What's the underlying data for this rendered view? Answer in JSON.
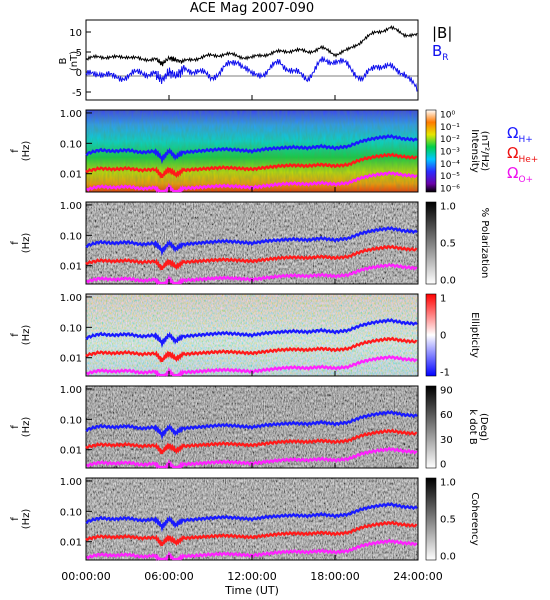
{
  "title": "ACE Mag 2007-090",
  "xlabel": "Time (UT)",
  "x_ticks": [
    "00:00:00",
    "06:00:00",
    "12:00:00",
    "18:00:00",
    "24:00:00"
  ],
  "colors": {
    "B_total": "#000000",
    "B_R": "#1010ee",
    "H_plus": "#1a1aff",
    "He_plus": "#ff1a1a",
    "O_plus": "#ff22ff"
  },
  "chart_data": [
    {
      "type": "line",
      "panel": "field",
      "ylabel": "B\n(nT)",
      "ylim": [
        -7,
        13
      ],
      "y_ticks": [
        "10",
        "5",
        "0",
        "-5"
      ],
      "legend": [
        "|B|",
        "B"
      ],
      "legend_subscripts": [
        "",
        "R"
      ],
      "x_hours": [
        0,
        1,
        2,
        3,
        4,
        5,
        5.5,
        6,
        6.5,
        7,
        8,
        9,
        10,
        11,
        12,
        13,
        14,
        15,
        16,
        17,
        18,
        19,
        20,
        21,
        22,
        23,
        24
      ],
      "series": [
        {
          "name": "|B|",
          "values": [
            3,
            4,
            3.5,
            4,
            3,
            3.5,
            2,
            3.5,
            3,
            2.5,
            3.5,
            4,
            4.5,
            4,
            3.5,
            4.5,
            5,
            5.5,
            5,
            6,
            4.5,
            5.5,
            8,
            10,
            11,
            9.5,
            9
          ]
        },
        {
          "name": "B",
          "values": [
            -1,
            0,
            -1.5,
            -1,
            0,
            -0.5,
            -2,
            0,
            -1,
            0.5,
            0.5,
            -1.5,
            1,
            3,
            -1,
            0,
            2.5,
            0,
            -1.5,
            2.5,
            3,
            1.5,
            -2,
            2,
            1,
            0,
            -5
          ]
        }
      ]
    },
    {
      "type": "heatmap",
      "panel": "intensity",
      "ylabel": "f\n(Hz)",
      "y_ticks": [
        "1.00",
        "0.10",
        "0.01"
      ],
      "colorbar_label": "Intensity\n(nT²/Hz)",
      "colorbar_ticks": [
        "10⁰",
        "10⁻¹",
        "10⁻²",
        "10⁻³",
        "10⁻⁴",
        "10⁻⁵",
        "10⁻⁶"
      ],
      "legend": [
        "Ω",
        "Ω",
        "Ω"
      ],
      "legend_subscripts": [
        "H+",
        "He+",
        "O+"
      ]
    },
    {
      "type": "heatmap",
      "panel": "polarization",
      "ylabel": "f\n(Hz)",
      "y_ticks": [
        "1.00",
        "0.10",
        "0.01"
      ],
      "colorbar_label": "% Polarization",
      "colorbar_ticks": [
        "1.0",
        "0.5",
        "0.0"
      ]
    },
    {
      "type": "heatmap",
      "panel": "ellipticity",
      "ylabel": "f\n(Hz)",
      "y_ticks": [
        "1.00",
        "0.10",
        "0.01"
      ],
      "colorbar_label": "Ellipticity",
      "colorbar_ticks": [
        "1",
        "0",
        "-1"
      ]
    },
    {
      "type": "heatmap",
      "panel": "kdotb",
      "ylabel": "f\n(Hz)",
      "y_ticks": [
        "1.00",
        "0.10",
        "0.01"
      ],
      "colorbar_label": "k dot B\n(Deg)",
      "colorbar_ticks": [
        "90",
        "60",
        "30",
        "0"
      ]
    },
    {
      "type": "heatmap",
      "panel": "coherency",
      "ylabel": "f\n(Hz)",
      "y_ticks": [
        "1.00",
        "0.10",
        "0.01"
      ],
      "colorbar_label": "Coherency",
      "colorbar_ticks": [
        "1.0",
        "0.5",
        "0.0"
      ]
    }
  ],
  "gyrofrequency": {
    "x_hours": [
      0,
      1,
      2,
      3,
      4,
      5,
      5.5,
      6,
      6.5,
      7,
      8,
      9,
      10,
      11,
      12,
      13,
      14,
      15,
      16,
      17,
      18,
      19,
      20,
      21,
      22,
      23,
      24
    ],
    "H_plus_hz": [
      0.045,
      0.06,
      0.055,
      0.06,
      0.05,
      0.055,
      0.03,
      0.055,
      0.035,
      0.05,
      0.055,
      0.06,
      0.065,
      0.06,
      0.055,
      0.065,
      0.07,
      0.075,
      0.07,
      0.08,
      0.07,
      0.08,
      0.12,
      0.15,
      0.17,
      0.14,
      0.13
    ],
    "He_plus_hz": [
      0.012,
      0.015,
      0.014,
      0.015,
      0.013,
      0.014,
      0.008,
      0.014,
      0.009,
      0.013,
      0.014,
      0.015,
      0.016,
      0.015,
      0.014,
      0.016,
      0.018,
      0.019,
      0.018,
      0.02,
      0.018,
      0.02,
      0.03,
      0.037,
      0.042,
      0.036,
      0.033
    ],
    "O_plus_hz": [
      0.003,
      0.0038,
      0.0035,
      0.0038,
      0.0032,
      0.0035,
      0.002,
      0.0035,
      0.0022,
      0.0033,
      0.0035,
      0.0038,
      0.004,
      0.0038,
      0.0035,
      0.004,
      0.0045,
      0.0048,
      0.0045,
      0.005,
      0.0045,
      0.005,
      0.0075,
      0.0093,
      0.0105,
      0.009,
      0.0083
    ]
  }
}
